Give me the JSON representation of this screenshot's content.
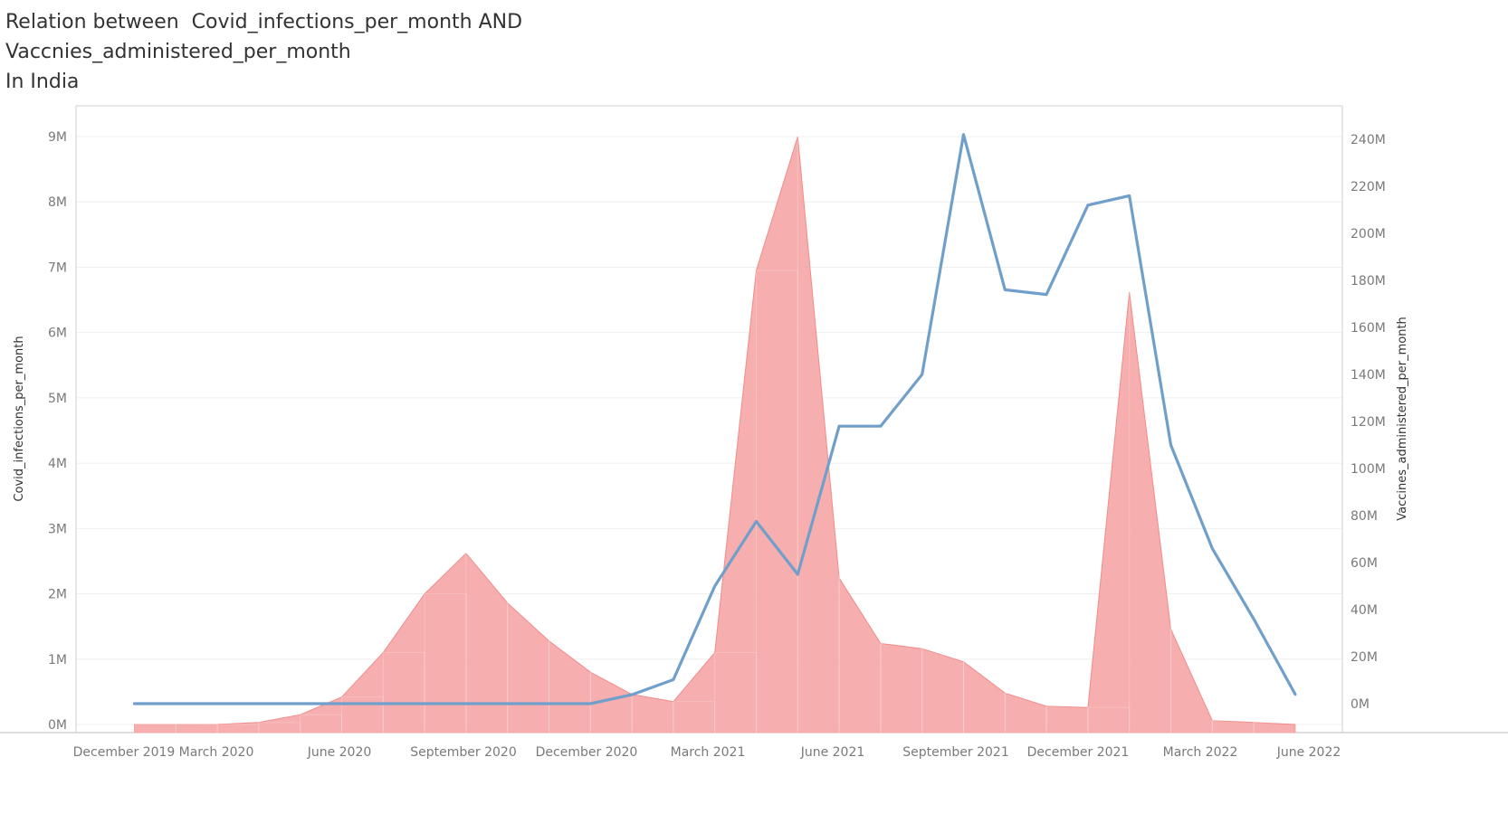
{
  "title": {
    "line1": "Relation between  Covid_infections_per_month AND",
    "line2": "Vaccnies_administered_per_month",
    "line3": "In India"
  },
  "chart_data": {
    "type": "area+line (dual axis)",
    "grid": true,
    "x_ticks": [
      "December 2019",
      "March 2020",
      "June 2020",
      "September 2020",
      "December 2020",
      "March 2021",
      "June 2021",
      "September 2021",
      "December 2021",
      "March 2022",
      "June 2022"
    ],
    "x_months": [
      "2020-01",
      "2020-02",
      "2020-03",
      "2020-04",
      "2020-05",
      "2020-06",
      "2020-07",
      "2020-08",
      "2020-09",
      "2020-10",
      "2020-11",
      "2020-12",
      "2021-01",
      "2021-02",
      "2021-03",
      "2021-04",
      "2021-05",
      "2021-06",
      "2021-07",
      "2021-08",
      "2021-09",
      "2021-10",
      "2021-11",
      "2021-12",
      "2022-01",
      "2022-02",
      "2022-03",
      "2022-04",
      "2022-05"
    ],
    "left_axis": {
      "label": "Covid_infections_per_month",
      "range": [
        0,
        9000000
      ],
      "ticks": [
        "0M",
        "1M",
        "2M",
        "3M",
        "4M",
        "5M",
        "6M",
        "7M",
        "8M",
        "9M"
      ]
    },
    "right_axis": {
      "label": "Vaccines_administered_per_month",
      "range": [
        0,
        240000000
      ],
      "ticks": [
        "0M",
        "20M",
        "40M",
        "60M",
        "80M",
        "100M",
        "120M",
        "140M",
        "160M",
        "180M",
        "200M",
        "220M",
        "240M"
      ]
    },
    "series": [
      {
        "name": "Covid_infections_per_month",
        "kind": "area",
        "axis": "left",
        "color": "#f5a3a3",
        "values": [
          0,
          0,
          1200,
          30000,
          150000,
          420000,
          1100000,
          2000000,
          2620000,
          1860000,
          1280000,
          800000,
          460000,
          350000,
          1100000,
          6950000,
          9000000,
          2240000,
          1240000,
          1160000,
          960000,
          480000,
          280000,
          260000,
          6620000,
          1460000,
          60000,
          30000,
          0
        ]
      },
      {
        "name": "Vaccines_administered_per_month",
        "kind": "line",
        "axis": "right",
        "color": "#6f9fca",
        "values": [
          0,
          0,
          0,
          0,
          0,
          0,
          0,
          0,
          0,
          0,
          0,
          0,
          3800000,
          10200000,
          50000000,
          77500000,
          55000000,
          118000000,
          118000000,
          140000000,
          242000000,
          176000000,
          174000000,
          212000000,
          216000000,
          110000000,
          66000000,
          36000000,
          4000000
        ]
      }
    ]
  }
}
